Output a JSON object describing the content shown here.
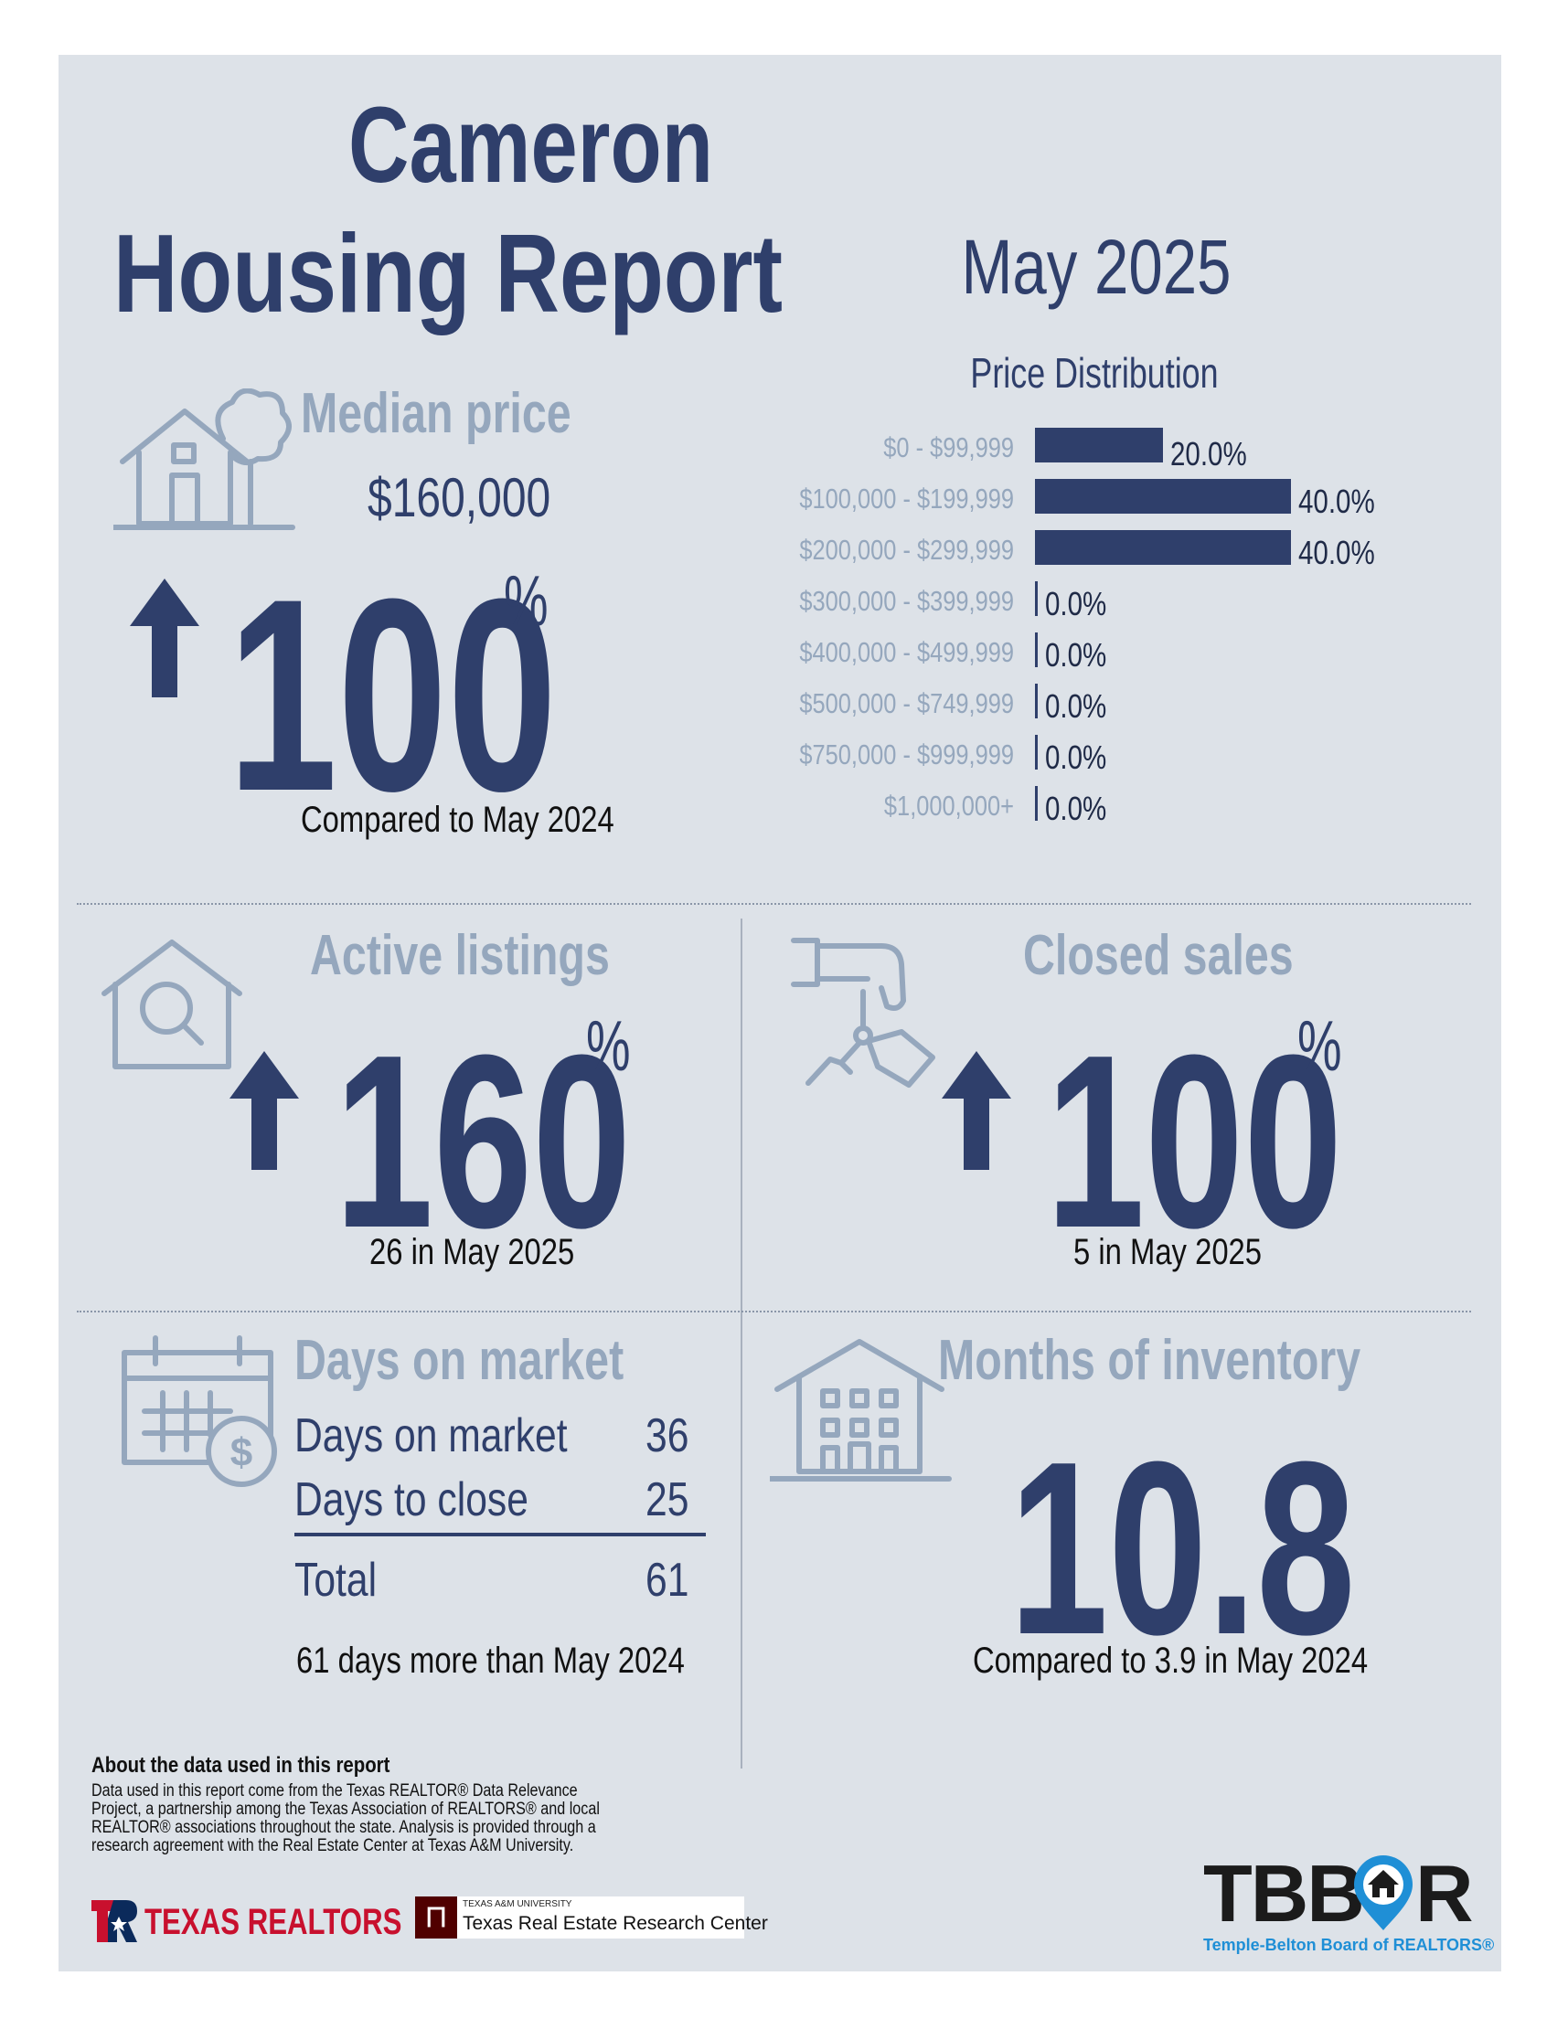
{
  "header": {
    "city": "Cameron",
    "title": "Housing Report",
    "month": "May 2025"
  },
  "median_price": {
    "label": "Median price",
    "value": "$160,000",
    "change": "100",
    "pct_sign": "%",
    "direction": "up",
    "note": "Compared to May 2024"
  },
  "price_distribution": {
    "title": "Price Distribution",
    "rows": [
      {
        "range": "$0 - $99,999",
        "pct": 20.0,
        "label": "20.0%"
      },
      {
        "range": "$100,000 - $199,999",
        "pct": 40.0,
        "label": "40.0%"
      },
      {
        "range": "$200,000 - $299,999",
        "pct": 40.0,
        "label": "40.0%"
      },
      {
        "range": "$300,000 - $399,999",
        "pct": 0.0,
        "label": "0.0%"
      },
      {
        "range": "$400,000 - $499,999",
        "pct": 0.0,
        "label": "0.0%"
      },
      {
        "range": "$500,000 - $749,999",
        "pct": 0.0,
        "label": "0.0%"
      },
      {
        "range": "$750,000 - $999,999",
        "pct": 0.0,
        "label": "0.0%"
      },
      {
        "range": "$1,000,000+",
        "pct": 0.0,
        "label": "0.0%"
      }
    ]
  },
  "active_listings": {
    "label": "Active listings",
    "change": "160",
    "pct_sign": "%",
    "direction": "up",
    "note": "26 in May 2025"
  },
  "closed_sales": {
    "label": "Closed sales",
    "change": "100",
    "pct_sign": "%",
    "direction": "up",
    "note": "5 in May 2025"
  },
  "days_on_market": {
    "label": "Days on market",
    "rows": [
      {
        "name": "Days on market",
        "value": "36"
      },
      {
        "name": "Days to close",
        "value": "25"
      }
    ],
    "total_label": "Total",
    "total_value": "61",
    "note": "61 days more than May 2024"
  },
  "months_inventory": {
    "label": "Months of inventory",
    "value": "10.8",
    "note": "Compared to 3.9 in May 2024"
  },
  "footer": {
    "about_title": "About the data used in this report",
    "about_text": "Data used in this report come from the Texas REALTOR® Data Relevance Project, a partnership among the Texas Association of REALTORS® and local REALTOR® associations throughout the state. Analysis is provided through a research agreement with the Real Estate Center at Texas A&M University.",
    "texas_realtors": "TEXAS REALTORS",
    "tamu_small": "TEXAS A&M UNIVERSITY",
    "tamu_center": "Texas Real Estate Research Center",
    "tbbor_pre": "TBB",
    "tbbor_post": "R",
    "tbbor_full": "Temple-Belton Board of REALTORS®"
  },
  "colors": {
    "navy": "#2f3f6b",
    "grey_blue": "#95a7bd",
    "panel": "#dde2e8",
    "tr_red": "#c8102e",
    "tr_blue": "#0b2a5b",
    "tamu_maroon": "#500000",
    "tbbor_blue": "#1f8fd6"
  }
}
